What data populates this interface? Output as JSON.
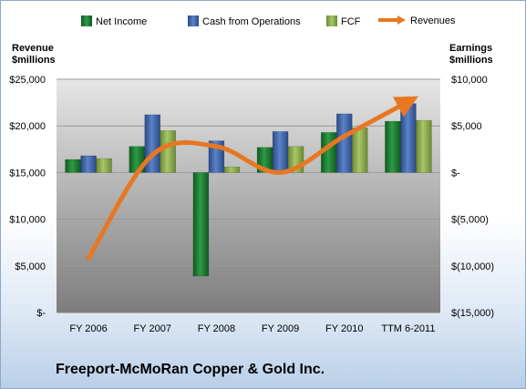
{
  "company_name": "Freeport-McMoRan Copper & Gold Inc.",
  "left_axis_title": [
    "Revenue",
    "$millions"
  ],
  "right_axis_title": [
    "Earnings",
    "$millions"
  ],
  "colors": {
    "net_income": "#1e7a30",
    "cash_from_operations": "#3b5fa0",
    "fcf": "#8aa84a",
    "revenues": "#e87722"
  },
  "chart_data": {
    "type": "bar",
    "categories": [
      "FY 2006",
      "FY 2007",
      "FY 2008",
      "FY 2009",
      "FY 2010",
      "TTM 6-2011"
    ],
    "left_axis": {
      "range": [
        0,
        25000
      ],
      "ticks": [
        0,
        5000,
        10000,
        15000,
        20000,
        25000
      ],
      "tick_labels": [
        "$-",
        "$5,000",
        "$10,000",
        "$15,000",
        "$20,000",
        "$25,000"
      ]
    },
    "right_axis": {
      "range": [
        -15000,
        10000
      ],
      "ticks": [
        -15000,
        -10000,
        -5000,
        0,
        5000,
        10000
      ],
      "tick_labels": [
        "$(15,000)",
        "$(10,000)",
        "$(5,000)",
        "$-",
        "$5,000",
        "$10,000"
      ]
    },
    "series": [
      {
        "name": "Net Income",
        "type": "bar",
        "axis": "right",
        "values": [
          1400,
          2800,
          -11100,
          2700,
          4300,
          5500
        ]
      },
      {
        "name": "Cash from Operations",
        "type": "bar",
        "axis": "right",
        "values": [
          1800,
          6200,
          3400,
          4400,
          6300,
          7400
        ]
      },
      {
        "name": "FCF",
        "type": "bar",
        "axis": "right",
        "values": [
          1500,
          4500,
          600,
          2800,
          4800,
          5600
        ]
      },
      {
        "name": "Revenues",
        "type": "line",
        "axis": "left",
        "values": [
          5800,
          16900,
          17800,
          15000,
          18900,
          22600
        ]
      }
    ],
    "legend_position": "top",
    "grid": true
  }
}
